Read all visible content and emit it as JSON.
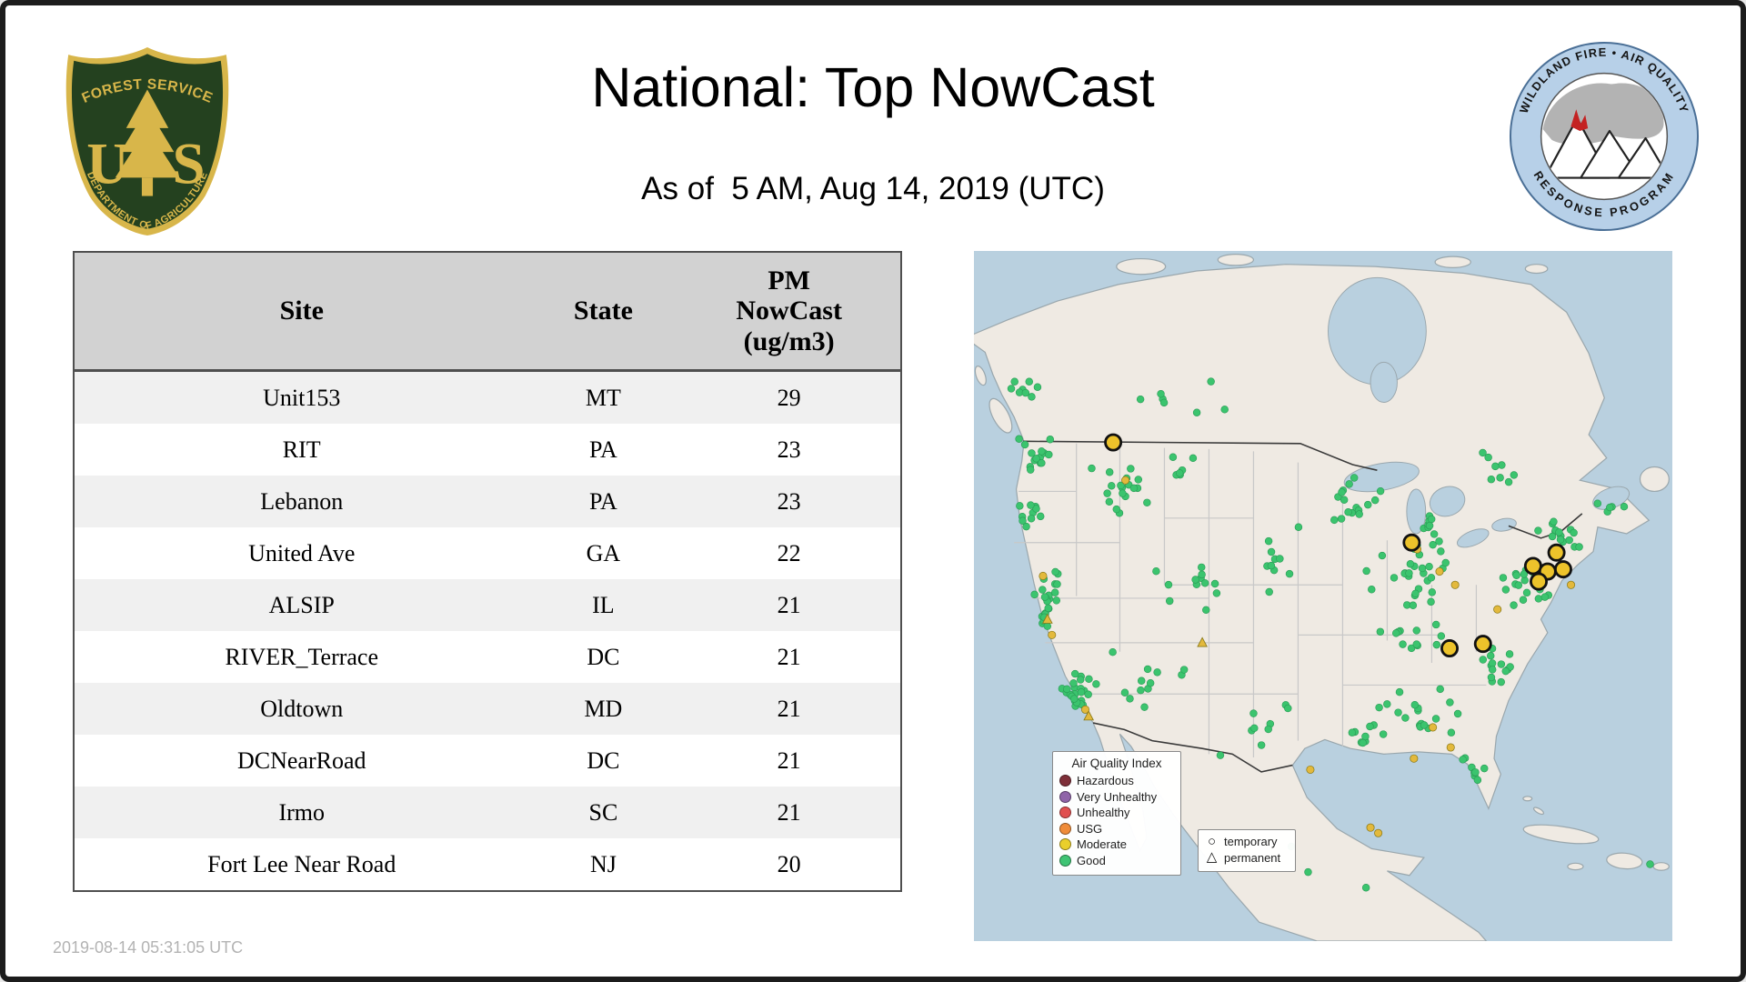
{
  "header": {
    "title": "National: Top NowCast",
    "subtitle": "As of  5 AM, Aug 14, 2019 (UTC)"
  },
  "logos": {
    "forest_service": {
      "arc_top": "FOREST SERVICE",
      "monogram_left": "U",
      "monogram_right": "S",
      "arc_bottom": "DEPARTMENT OF AGRICULTURE",
      "field_color": "#24411f",
      "gold_color": "#d8b64a"
    },
    "wfaqrp": {
      "arc_top": "WILDLAND FIRE • AIR QUALITY",
      "arc_bottom": "RESPONSE PROGRAM",
      "ring_color": "#b7d0e8"
    }
  },
  "table": {
    "headers": [
      "Site",
      "State",
      "PM\nNowCast\n(ug/m3)"
    ],
    "rows": [
      [
        "Unit153",
        "MT",
        "29"
      ],
      [
        "RIT",
        "PA",
        "23"
      ],
      [
        "Lebanon",
        "PA",
        "23"
      ],
      [
        "United Ave",
        "GA",
        "22"
      ],
      [
        "ALSIP",
        "IL",
        "21"
      ],
      [
        "RIVER_Terrace",
        "DC",
        "21"
      ],
      [
        "Oldtown",
        "MD",
        "21"
      ],
      [
        "DCNearRoad",
        "DC",
        "21"
      ],
      [
        "Irmo",
        "SC",
        "21"
      ],
      [
        "Fort Lee Near Road",
        "NJ",
        "20"
      ]
    ]
  },
  "map": {
    "colors": {
      "water": "#b9d0df",
      "land": "#efeae3",
      "coast": "#9aa7ad",
      "state": "#c8c8c8",
      "border": "#3a3a3a",
      "good": "#3bc46e",
      "moderate": "#e3b93c",
      "top_site": "#edc32b"
    },
    "legend_aqi": {
      "title": "Air Quality Index",
      "items": [
        {
          "label": "Hazardous",
          "color": "#7e2f39"
        },
        {
          "label": "Very Unhealthy",
          "color": "#8f64a8"
        },
        {
          "label": "Unhealthy",
          "color": "#e05050"
        },
        {
          "label": "USG",
          "color": "#ef8c3a"
        },
        {
          "label": "Moderate",
          "color": "#e9cf2c"
        },
        {
          "label": "Good",
          "color": "#3fc474"
        }
      ]
    },
    "legend_shapes": {
      "items": [
        {
          "label": "temporary",
          "shape": "circle"
        },
        {
          "label": "permanent",
          "shape": "triangle"
        }
      ]
    },
    "good_clusters": [
      [
        55,
        185,
        18,
        18,
        14
      ],
      [
        52,
        235,
        14,
        20,
        10
      ],
      [
        68,
        310,
        16,
        25,
        16
      ],
      [
        62,
        330,
        8,
        12,
        8
      ],
      [
        95,
        395,
        18,
        20,
        16
      ],
      [
        98,
        404,
        10,
        9,
        8
      ],
      [
        45,
        125,
        15,
        22,
        8
      ],
      [
        130,
        215,
        35,
        30,
        18
      ],
      [
        190,
        195,
        30,
        18,
        6
      ],
      [
        180,
        135,
        55,
        22,
        7
      ],
      [
        165,
        390,
        45,
        35,
        12
      ],
      [
        195,
        300,
        40,
        30,
        12
      ],
      [
        275,
        280,
        35,
        60,
        10
      ],
      [
        255,
        430,
        40,
        28,
        9
      ],
      [
        345,
        225,
        30,
        25,
        16
      ],
      [
        390,
        290,
        45,
        35,
        30
      ],
      [
        408,
        245,
        14,
        18,
        8
      ],
      [
        400,
        345,
        40,
        18,
        12
      ],
      [
        400,
        418,
        45,
        28,
        20
      ],
      [
        465,
        370,
        28,
        24,
        14
      ],
      [
        449,
        465,
        11,
        22,
        8
      ],
      [
        495,
        300,
        24,
        28,
        22
      ],
      [
        525,
        253,
        24,
        20,
        16
      ],
      [
        465,
        196,
        40,
        16,
        8
      ],
      [
        573,
        234,
        18,
        12,
        5
      ],
      [
        345,
        435,
        25,
        12,
        7
      ]
    ],
    "good_singles": [
      [
        285,
        535
      ],
      [
        352,
        572
      ],
      [
        300,
        558
      ],
      [
        607,
        551
      ]
    ],
    "moderate_dots": [
      [
        62,
        292
      ],
      [
        70,
        345
      ],
      [
        100,
        412
      ],
      [
        136,
        206
      ],
      [
        398,
        268
      ],
      [
        418,
        288
      ],
      [
        432,
        300
      ],
      [
        470,
        322
      ],
      [
        412,
        428
      ],
      [
        428,
        446
      ],
      [
        395,
        456
      ],
      [
        302,
        466
      ],
      [
        356,
        518
      ],
      [
        363,
        523
      ],
      [
        536,
        300
      ]
    ],
    "moderate_triangles": [
      [
        66,
        331
      ],
      [
        205,
        352
      ],
      [
        103,
        418
      ]
    ],
    "top_sites": [
      [
        125,
        172
      ],
      [
        393,
        262
      ],
      [
        502,
        283
      ],
      [
        515,
        288
      ],
      [
        523,
        271
      ],
      [
        529,
        286
      ],
      [
        507,
        297
      ],
      [
        427,
        357
      ],
      [
        457,
        353
      ]
    ]
  },
  "footer": {
    "timestamp": "2019-08-14 05:31:05 UTC"
  },
  "chart_data": [
    {
      "type": "table",
      "title": "National: Top NowCast",
      "subtitle": "As of 5 AM, Aug 14, 2019 (UTC)",
      "columns": [
        "Site",
        "State",
        "PM NowCast (ug/m3)"
      ],
      "rows": [
        [
          "Unit153",
          "MT",
          29
        ],
        [
          "RIT",
          "PA",
          23
        ],
        [
          "Lebanon",
          "PA",
          23
        ],
        [
          "United Ave",
          "GA",
          22
        ],
        [
          "ALSIP",
          "IL",
          21
        ],
        [
          "RIVER_Terrace",
          "DC",
          21
        ],
        [
          "Oldtown",
          "MD",
          21
        ],
        [
          "DCNearRoad",
          "DC",
          21
        ],
        [
          "Irmo",
          "SC",
          21
        ],
        [
          "Fort Lee Near Road",
          "NJ",
          20
        ]
      ]
    },
    {
      "type": "scatter",
      "title": "US map of PM NowCast air-quality monitors",
      "legend": [
        "Hazardous",
        "Very Unhealthy",
        "Unhealthy",
        "USG",
        "Moderate",
        "Good"
      ],
      "marker_shapes": {
        "circle": "temporary",
        "triangle": "permanent"
      },
      "notes": "Monitors are predominantly Good (green) nationwide with scattered Moderate (yellow) monitors in California, the Ohio Valley, Mid-Atlantic, Southeast and Gulf coast; the top NowCast sites are highlighted with black-ringed yellow circles in MT, IL, GA, SC and the DC/MD/PA/NJ corridor."
    }
  ]
}
